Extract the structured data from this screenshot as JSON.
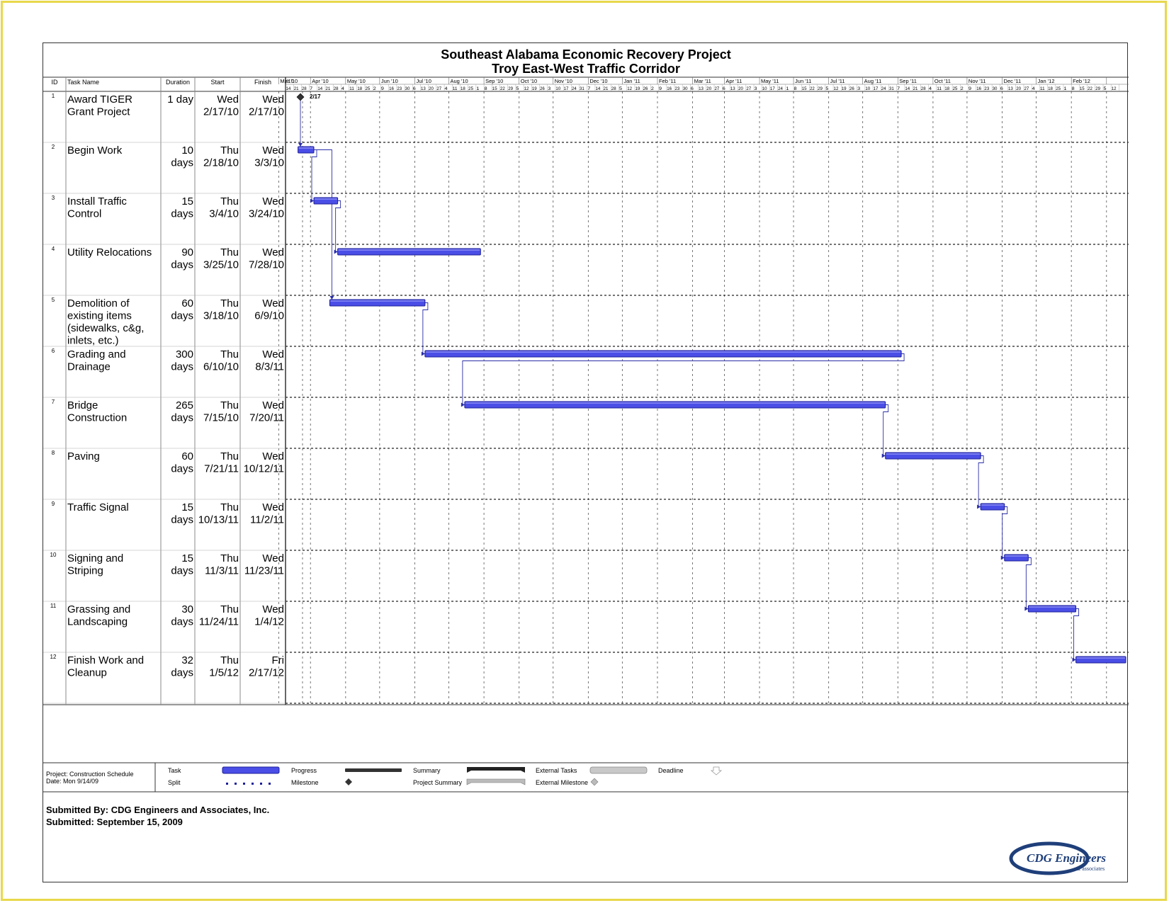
{
  "header": {
    "title": "Southeast Alabama Economic Recovery Project",
    "subtitle": "Troy East-West Traffic Corridor"
  },
  "columns": {
    "id": "ID",
    "task": "Task Name",
    "duration": "Duration",
    "start": "Start",
    "finish": "Finish"
  },
  "chart_data": {
    "type": "gantt",
    "timeline_start": "2010-02-07",
    "timeline_end": "2012-02-18",
    "month_labels": [
      "'10",
      "Mar '10",
      "Apr '10",
      "May '10",
      "Jun '10",
      "Jul '10",
      "Aug '10",
      "Sep '10",
      "Oct '10",
      "Nov '10",
      "Dec '10",
      "Jan '11",
      "Feb '11",
      "Mar '11",
      "Apr '11",
      "May '11",
      "Jun '11",
      "Jul '11",
      "Aug '11",
      "Sep '11",
      "Oct '11",
      "Nov '11",
      "Dec '11",
      "Jan '12",
      "Feb '12"
    ],
    "week_labels": [
      "14",
      "21",
      "28",
      "7",
      "14",
      "21",
      "28",
      "4",
      "11",
      "18",
      "25",
      "2",
      "9",
      "16",
      "23",
      "30",
      "6",
      "13",
      "20",
      "27",
      "4",
      "11",
      "18",
      "25",
      "1",
      "8",
      "15",
      "22",
      "29",
      "5",
      "12",
      "19",
      "26",
      "3",
      "10",
      "17",
      "24",
      "31",
      "7",
      "14",
      "21",
      "28",
      "5",
      "12",
      "19",
      "26",
      "2",
      "9",
      "16",
      "23",
      "30",
      "6",
      "13",
      "20",
      "27",
      "6",
      "13",
      "20",
      "27",
      "3",
      "10",
      "17",
      "24",
      "1",
      "8",
      "15",
      "22",
      "29",
      "5",
      "12",
      "19",
      "26",
      "3",
      "10",
      "17",
      "24",
      "31",
      "7",
      "14",
      "21",
      "28",
      "4",
      "11",
      "18",
      "25",
      "2",
      "9",
      "16",
      "23",
      "30",
      "6",
      "13",
      "20",
      "27",
      "4",
      "11",
      "18",
      "25",
      "1",
      "8",
      "15",
      "22",
      "29",
      "5",
      "12"
    ],
    "tasks": [
      {
        "id": "1",
        "name_lines": [
          "Award TIGER",
          "Grant Project"
        ],
        "duration_lines": [
          "1 day",
          ""
        ],
        "start_lines": [
          "Wed",
          "2/17/10"
        ],
        "finish_lines": [
          "Wed",
          "2/17/10"
        ],
        "start": "2010-02-17",
        "finish": "2010-02-17",
        "milestone": true,
        "milestone_label": "2/17"
      },
      {
        "id": "2",
        "name_lines": [
          "Begin Work"
        ],
        "duration_lines": [
          "10",
          "days"
        ],
        "start_lines": [
          "Thu",
          "2/18/10"
        ],
        "finish_lines": [
          "Wed",
          "3/3/10"
        ],
        "start": "2010-02-18",
        "finish": "2010-03-03"
      },
      {
        "id": "3",
        "name_lines": [
          "Install Traffic",
          "Control"
        ],
        "duration_lines": [
          "15",
          "days"
        ],
        "start_lines": [
          "Thu",
          "3/4/10"
        ],
        "finish_lines": [
          "Wed",
          "3/24/10"
        ],
        "start": "2010-03-04",
        "finish": "2010-03-24"
      },
      {
        "id": "4",
        "name_lines": [
          "Utility Relocations"
        ],
        "duration_lines": [
          "90",
          "days"
        ],
        "start_lines": [
          "Thu",
          "3/25/10"
        ],
        "finish_lines": [
          "Wed",
          "7/28/10"
        ],
        "start": "2010-03-25",
        "finish": "2010-07-28"
      },
      {
        "id": "5",
        "name_lines": [
          "Demolition of",
          "existing items",
          "(sidewalks, c&g,",
          "inlets, etc.)"
        ],
        "duration_lines": [
          "60",
          "days"
        ],
        "start_lines": [
          "Thu",
          "3/18/10"
        ],
        "finish_lines": [
          "Wed",
          "6/9/10"
        ],
        "start": "2010-03-18",
        "finish": "2010-06-09"
      },
      {
        "id": "6",
        "name_lines": [
          "Grading and",
          "Drainage"
        ],
        "duration_lines": [
          "300",
          "days"
        ],
        "start_lines": [
          "Thu",
          "6/10/10"
        ],
        "finish_lines": [
          "Wed",
          "8/3/11"
        ],
        "start": "2010-06-10",
        "finish": "2011-08-03"
      },
      {
        "id": "7",
        "name_lines": [
          "Bridge",
          "Construction"
        ],
        "duration_lines": [
          "265",
          "days"
        ],
        "start_lines": [
          "Thu",
          "7/15/10"
        ],
        "finish_lines": [
          "Wed",
          "7/20/11"
        ],
        "start": "2010-07-15",
        "finish": "2011-07-20"
      },
      {
        "id": "8",
        "name_lines": [
          "Paving"
        ],
        "duration_lines": [
          "60",
          "days"
        ],
        "start_lines": [
          "Thu",
          "7/21/11"
        ],
        "finish_lines": [
          "Wed",
          "10/12/11"
        ],
        "start": "2011-07-21",
        "finish": "2011-10-12"
      },
      {
        "id": "9",
        "name_lines": [
          "Traffic Signal"
        ],
        "duration_lines": [
          "15",
          "days"
        ],
        "start_lines": [
          "Thu",
          "10/13/11"
        ],
        "finish_lines": [
          "Wed",
          "11/2/11"
        ],
        "start": "2011-10-13",
        "finish": "2011-11-02"
      },
      {
        "id": "10",
        "name_lines": [
          "Signing and",
          "Striping"
        ],
        "duration_lines": [
          "15",
          "days"
        ],
        "start_lines": [
          "Thu",
          "11/3/11"
        ],
        "finish_lines": [
          "Wed",
          "11/23/11"
        ],
        "start": "2011-11-03",
        "finish": "2011-11-23"
      },
      {
        "id": "11",
        "name_lines": [
          "Grassing and",
          "Landscaping"
        ],
        "duration_lines": [
          "30",
          "days"
        ],
        "start_lines": [
          "Thu",
          "11/24/11"
        ],
        "finish_lines": [
          "Wed",
          "1/4/12"
        ],
        "start": "2011-11-24",
        "finish": "2012-01-04"
      },
      {
        "id": "12",
        "name_lines": [
          "Finish Work and",
          "Cleanup"
        ],
        "duration_lines": [
          "32",
          "days"
        ],
        "start_lines": [
          "Thu",
          "1/5/12"
        ],
        "finish_lines": [
          "Fri",
          "2/17/12"
        ],
        "start": "2012-01-05",
        "finish": "2012-02-17"
      }
    ],
    "dependencies": [
      [
        1,
        2
      ],
      [
        2,
        3
      ],
      [
        3,
        4
      ],
      [
        2,
        5
      ],
      [
        5,
        6
      ],
      [
        6,
        7
      ],
      [
        7,
        8
      ],
      [
        8,
        9
      ],
      [
        9,
        10
      ],
      [
        10,
        11
      ],
      [
        11,
        12
      ]
    ]
  },
  "legend": {
    "project": "Project: Construction Schedule",
    "date": "Date: Mon 9/14/09",
    "task": "Task",
    "split": "Split",
    "progress": "Progress",
    "milestone": "Milestone",
    "summary": "Summary",
    "project_summary": "Project Summary",
    "external_tasks": "External Tasks",
    "external_milestone": "External Milestone",
    "deadline": "Deadline"
  },
  "footer": {
    "submitted_by": "Submitted By: CDG Engineers and Associates, Inc.",
    "submitted_date": "Submitted: September 15, 2009",
    "logo_main": "CDG Engineers",
    "logo_sub": "& associates"
  },
  "colors": {
    "bar": "#4a4ee6",
    "bar_dark": "#1c1f9a",
    "frame": "#e8d84a"
  }
}
